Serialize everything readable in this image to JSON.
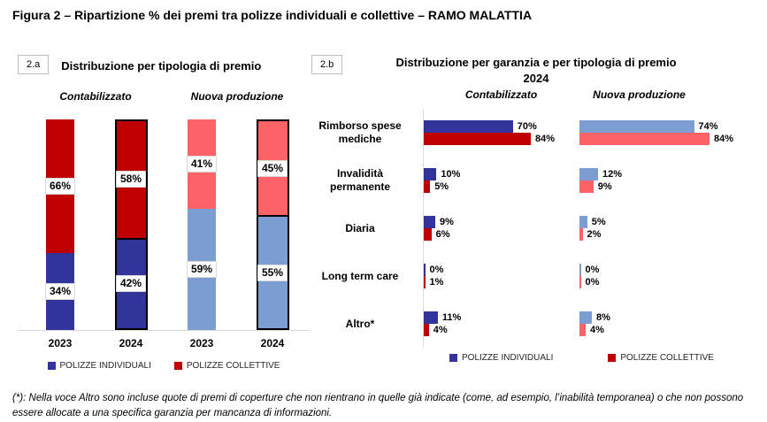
{
  "page": {
    "title": "Figura 2 – Ripartizione % dei premi tra polizze individuali e collettive – RAMO MALATTIA",
    "footnote": "(*): Nella voce Altro sono incluse quote di premi di coperture che non rientrano in quelle già indicate (come, ad esempio, l’inabilità temporanea) o che non possono essere allocate a una specifica garanzia per mancanza di informazioni."
  },
  "colors": {
    "individual": "#32339B",
    "collective": "#C00000",
    "individual_new": "#7B9DD1",
    "collective_new": "#FB6366",
    "axis": "#D9D9D9"
  },
  "legend": {
    "individual": "POLIZZE INDIVIDUALI",
    "collective": "POLIZZE COLLETTIVE"
  },
  "chart_data": [
    {
      "id": "2a",
      "badge": "2.a",
      "type": "bar",
      "subtype": "stacked-vertical-100pct",
      "title": "Distribuzione per tipologia di premio",
      "ylim": [
        0,
        100
      ],
      "unit": "%",
      "groups": [
        {
          "name": "Contabilizzato",
          "bars": [
            {
              "year": "2023",
              "individuali": 34,
              "collettive": 66,
              "highlight": false
            },
            {
              "year": "2024",
              "individuali": 42,
              "collettive": 58,
              "highlight": true
            }
          ]
        },
        {
          "name": "Nuova produzione",
          "bars": [
            {
              "year": "2023",
              "individuali": 59,
              "collettive": 41,
              "highlight": false
            },
            {
              "year": "2024",
              "individuali": 55,
              "collettive": 45,
              "highlight": true
            }
          ]
        }
      ],
      "legend_position": "bottom"
    },
    {
      "id": "2b",
      "badge": "2.b",
      "type": "bar",
      "subtype": "grouped-horizontal",
      "title": "Distribuzione per garanzia e per tipologia di premio",
      "subtitle": "2024",
      "unit": "%",
      "column_headers": [
        "Contabilizzato",
        "Nuova produzione"
      ],
      "categories": [
        "Rimborso spese mediche",
        "Invalidità permanente",
        "Diaria",
        "Long term care",
        "Altro*"
      ],
      "series": [
        {
          "name": "POLIZZE INDIVIDUALI",
          "group": "Contabilizzato",
          "values": [
            70,
            10,
            9,
            0,
            11
          ]
        },
        {
          "name": "POLIZZE COLLETTIVE",
          "group": "Contabilizzato",
          "values": [
            84,
            5,
            6,
            1,
            4
          ]
        },
        {
          "name": "POLIZZE INDIVIDUALI",
          "group": "Nuova produzione",
          "values": [
            74,
            12,
            5,
            0,
            8
          ]
        },
        {
          "name": "POLIZZE COLLETTIVE",
          "group": "Nuova produzione",
          "values": [
            84,
            9,
            2,
            0,
            4
          ]
        }
      ],
      "legend_position": "bottom"
    }
  ]
}
